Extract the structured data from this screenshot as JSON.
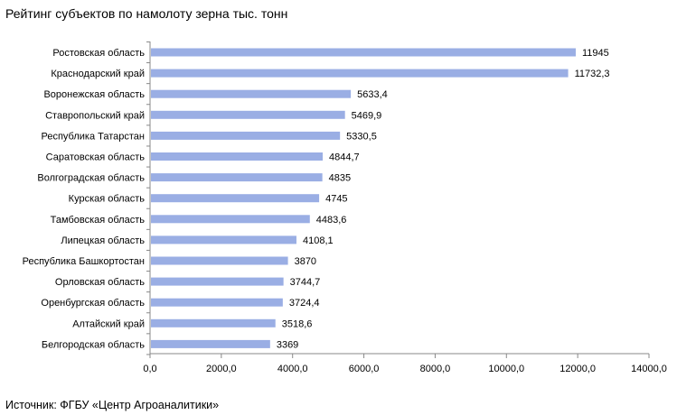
{
  "source_note": "Источник: ФГБУ «Центр Агроаналитики»",
  "colors": {
    "bar": "#9aaee4",
    "axis": "#888888"
  },
  "chart_data": {
    "type": "bar",
    "orientation": "horizontal",
    "title": "Рейтинг субъектов по намолоту зерна тыс. тонн",
    "categories": [
      "Ростовская область",
      "Краснодарский край",
      "Воронежская область",
      "Ставропольский край",
      "Республика Татарстан",
      "Саратовская область",
      "Волгоградская область",
      "Курская область",
      "Тамбовская область",
      "Липецкая область",
      "Республика Башкортостан",
      "Орловская область",
      "Оренбургская область",
      "Алтайский край",
      "Белгородская область"
    ],
    "values": [
      11945,
      11732.3,
      5633.4,
      5469.9,
      5330.5,
      4844.7,
      4835,
      4745,
      4483.6,
      4108.1,
      3870,
      3744.7,
      3724.4,
      3518.6,
      3369
    ],
    "value_labels": [
      "11945",
      "11732,3",
      "5633,4",
      "5469,9",
      "5330,5",
      "4844,7",
      "4835",
      "4745",
      "4483,6",
      "4108,1",
      "3870",
      "3744,7",
      "3724,4",
      "3518,6",
      "3369"
    ],
    "x_ticks": [
      0,
      2000,
      4000,
      6000,
      8000,
      10000,
      12000,
      14000
    ],
    "x_tick_labels": [
      "0,0",
      "2000,0",
      "4000,0",
      "6000,0",
      "8000,0",
      "10000,0",
      "12000,0",
      "14000,0"
    ],
    "xlim": [
      0,
      14000
    ],
    "grid": false,
    "legend": false
  }
}
